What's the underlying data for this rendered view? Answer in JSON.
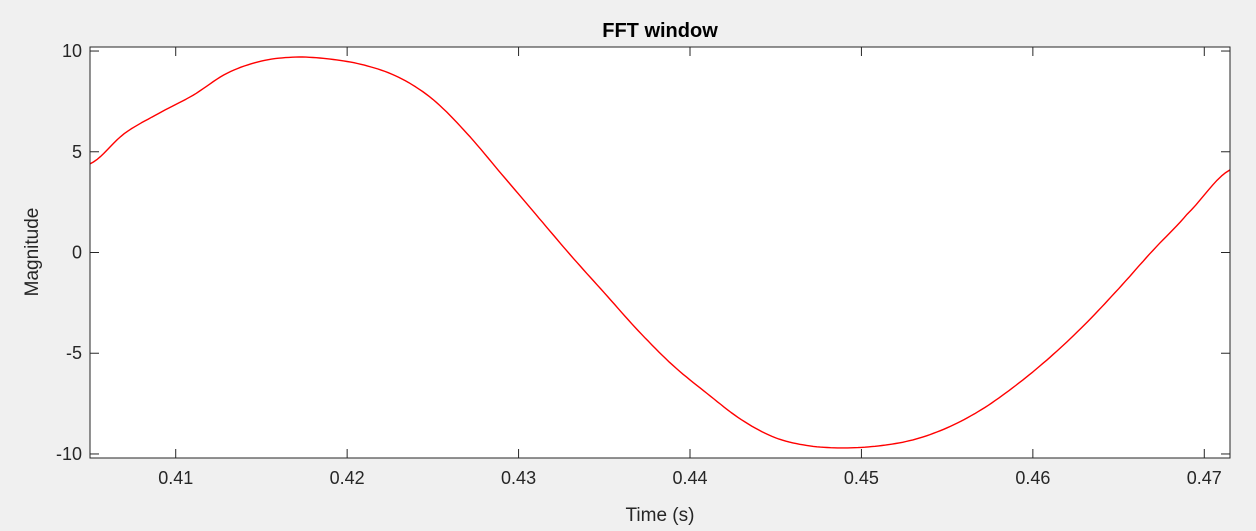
{
  "chart_data": {
    "type": "line",
    "title": "FFT window",
    "xlabel": "Time (s)",
    "ylabel": "Magnitude",
    "xlim": [
      0.405,
      0.4715
    ],
    "ylim": [
      -10.2,
      10.2
    ],
    "x_ticks": [
      0.41,
      0.42,
      0.43,
      0.44,
      0.45,
      0.46,
      0.47
    ],
    "x_tick_labels": [
      "0.41",
      "0.42",
      "0.43",
      "0.44",
      "0.45",
      "0.46",
      "0.47"
    ],
    "y_ticks": [
      -10,
      -5,
      0,
      5,
      10
    ],
    "y_tick_labels": [
      "-10",
      "-5",
      "0",
      "5",
      "10"
    ],
    "grid": false,
    "series": [
      {
        "color": "#ff0000",
        "x": [
          0.405,
          0.407,
          0.409,
          0.411,
          0.413,
          0.415,
          0.417,
          0.419,
          0.421,
          0.423,
          0.425,
          0.427,
          0.429,
          0.431,
          0.433,
          0.435,
          0.437,
          0.439,
          0.441,
          0.443,
          0.445,
          0.447,
          0.449,
          0.451,
          0.453,
          0.455,
          0.457,
          0.459,
          0.461,
          0.463,
          0.465,
          0.467,
          0.469,
          0.4715
        ],
        "y": [
          4.4,
          5.9,
          6.9,
          7.8,
          8.9,
          9.5,
          9.7,
          9.6,
          9.3,
          8.7,
          7.6,
          5.9,
          3.9,
          1.9,
          -0.1,
          -2.0,
          -3.9,
          -5.6,
          -7.0,
          -8.3,
          -9.2,
          -9.6,
          -9.7,
          -9.6,
          -9.3,
          -8.7,
          -7.8,
          -6.6,
          -5.2,
          -3.6,
          -1.8,
          0.1,
          1.9,
          4.1
        ]
      }
    ]
  }
}
